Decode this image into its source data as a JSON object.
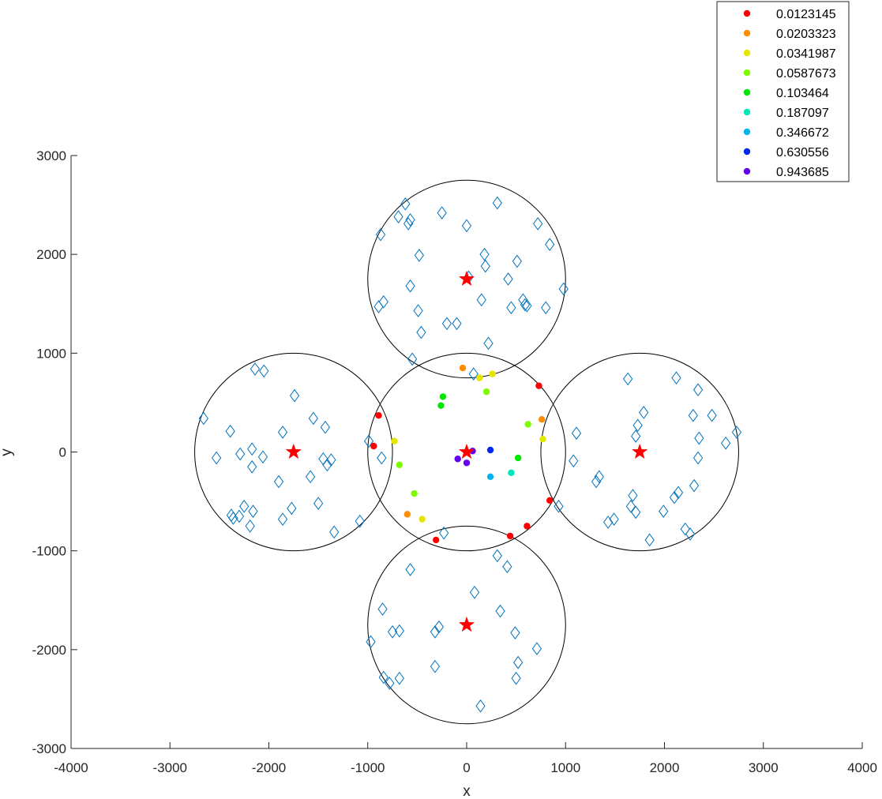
{
  "chart_data": {
    "type": "scatter",
    "title": "",
    "xlabel": "x",
    "ylabel": "y",
    "xlim": [
      -4000,
      4000
    ],
    "ylim": [
      -3000,
      3000
    ],
    "xticks": [
      -4000,
      -3000,
      -2000,
      -1000,
      0,
      1000,
      2000,
      3000,
      4000
    ],
    "yticks": [
      -3000,
      -2000,
      -1000,
      0,
      1000,
      2000,
      3000
    ],
    "grid": false,
    "legend_position": "top-right",
    "circles": {
      "radius": 1000,
      "color": "#000000",
      "centers": [
        [
          0,
          0
        ],
        [
          0,
          1750
        ],
        [
          0,
          -1750
        ],
        [
          -1750,
          0
        ],
        [
          1750,
          0
        ]
      ]
    },
    "centers_marker": {
      "marker": "star",
      "color": "#ff0000",
      "points": [
        [
          0,
          0
        ],
        [
          0,
          1750
        ],
        [
          0,
          -1750
        ],
        [
          -1750,
          0
        ],
        [
          1750,
          0
        ]
      ]
    },
    "diamonds": {
      "marker": "diamond",
      "color": "#0072bd",
      "points": [
        [
          -990,
          110
        ],
        [
          -860,
          -60
        ],
        [
          -1080,
          -700
        ],
        [
          -2660,
          340
        ],
        [
          -2530,
          -60
        ],
        [
          -2390,
          210
        ],
        [
          -2290,
          -20
        ],
        [
          -2170,
          30
        ],
        [
          -2170,
          -150
        ],
        [
          -2140,
          840
        ],
        [
          -2050,
          820
        ],
        [
          -2060,
          -50
        ],
        [
          -1860,
          200
        ],
        [
          -1740,
          570
        ],
        [
          -1550,
          340
        ],
        [
          -1580,
          -250
        ],
        [
          -1430,
          250
        ],
        [
          -1450,
          -70
        ],
        [
          -1410,
          -130
        ],
        [
          -1370,
          -80
        ],
        [
          -1500,
          -520
        ],
        [
          -1340,
          -810
        ],
        [
          -1770,
          -570
        ],
        [
          -1860,
          -680
        ],
        [
          -1900,
          -300
        ],
        [
          -2190,
          -750
        ],
        [
          -2160,
          -600
        ],
        [
          -2250,
          -550
        ],
        [
          -2300,
          -650
        ],
        [
          -2360,
          -670
        ],
        [
          -2380,
          -640
        ],
        [
          -620,
          2510
        ],
        [
          -590,
          2310
        ],
        [
          -570,
          2350
        ],
        [
          -690,
          2380
        ],
        [
          -870,
          2200
        ],
        [
          -250,
          2420
        ],
        [
          0,
          2290
        ],
        [
          310,
          2520
        ],
        [
          720,
          2310
        ],
        [
          840,
          2100
        ],
        [
          180,
          2000
        ],
        [
          190,
          1880
        ],
        [
          510,
          1930
        ],
        [
          -480,
          1990
        ],
        [
          -570,
          1680
        ],
        [
          20,
          1770
        ],
        [
          420,
          1750
        ],
        [
          980,
          1650
        ],
        [
          -840,
          1520
        ],
        [
          -890,
          1470
        ],
        [
          -490,
          1430
        ],
        [
          150,
          1540
        ],
        [
          570,
          1540
        ],
        [
          590,
          1490
        ],
        [
          610,
          1480
        ],
        [
          450,
          1460
        ],
        [
          800,
          1460
        ],
        [
          -460,
          1210
        ],
        [
          -200,
          1300
        ],
        [
          -100,
          1300
        ],
        [
          220,
          1100
        ],
        [
          -550,
          940
        ],
        [
          70,
          790
        ],
        [
          1110,
          190
        ],
        [
          1080,
          -90
        ],
        [
          930,
          -550
        ],
        [
          1310,
          -300
        ],
        [
          1340,
          -250
        ],
        [
          1430,
          -710
        ],
        [
          1490,
          -680
        ],
        [
          1630,
          740
        ],
        [
          1790,
          400
        ],
        [
          1730,
          270
        ],
        [
          1710,
          160
        ],
        [
          1660,
          -550
        ],
        [
          1680,
          -440
        ],
        [
          1710,
          -610
        ],
        [
          1850,
          -890
        ],
        [
          1990,
          -600
        ],
        [
          2100,
          -460
        ],
        [
          2140,
          -410
        ],
        [
          2210,
          -780
        ],
        [
          2260,
          -830
        ],
        [
          2290,
          370
        ],
        [
          2300,
          -340
        ],
        [
          2340,
          630
        ],
        [
          2120,
          750
        ],
        [
          2340,
          -60
        ],
        [
          2350,
          140
        ],
        [
          2480,
          370
        ],
        [
          2620,
          90
        ],
        [
          2730,
          200
        ],
        [
          -230,
          -820
        ],
        [
          -570,
          -1190
        ],
        [
          -850,
          -1590
        ],
        [
          -970,
          -1920
        ],
        [
          -840,
          -2280
        ],
        [
          -780,
          -2340
        ],
        [
          -750,
          -1820
        ],
        [
          -680,
          -1810
        ],
        [
          -680,
          -2290
        ],
        [
          -320,
          -1820
        ],
        [
          -280,
          -1770
        ],
        [
          -320,
          -2170
        ],
        [
          80,
          -1420
        ],
        [
          310,
          -1050
        ],
        [
          410,
          -1160
        ],
        [
          340,
          -1610
        ],
        [
          490,
          -1830
        ],
        [
          520,
          -2130
        ],
        [
          500,
          -2290
        ],
        [
          710,
          -1990
        ],
        [
          140,
          -2570
        ]
      ]
    },
    "legend_entries": [
      "0.0123145",
      "0.0203323",
      "0.0341987",
      "0.0587673",
      "0.103464",
      "0.187097",
      "0.346672",
      "0.630556",
      "0.943685"
    ],
    "series": [
      {
        "name": "0.0123145",
        "color": "#ff0000",
        "points": [
          [
            -890,
            370
          ],
          [
            -940,
            60
          ],
          [
            730,
            670
          ],
          [
            840,
            -490
          ],
          [
            610,
            -750
          ],
          [
            440,
            -850
          ],
          [
            -310,
            -890
          ]
        ]
      },
      {
        "name": "0.0203323",
        "color": "#ff8c00",
        "points": [
          [
            -40,
            850
          ],
          [
            760,
            330
          ],
          [
            -600,
            -630
          ]
        ]
      },
      {
        "name": "0.0341987",
        "color": "#e6e600",
        "points": [
          [
            130,
            750
          ],
          [
            260,
            790
          ],
          [
            770,
            130
          ],
          [
            -730,
            110
          ],
          [
            -450,
            -680
          ]
        ]
      },
      {
        "name": "0.0587673",
        "color": "#7cfc00",
        "points": [
          [
            200,
            610
          ],
          [
            620,
            280
          ],
          [
            -680,
            -130
          ],
          [
            -530,
            -420
          ]
        ]
      },
      {
        "name": "0.103464",
        "color": "#00e600",
        "points": [
          [
            -240,
            560
          ],
          [
            -260,
            470
          ],
          [
            520,
            -60
          ]
        ]
      },
      {
        "name": "0.187097",
        "color": "#00e6b8",
        "points": [
          [
            450,
            -210
          ]
        ]
      },
      {
        "name": "0.346672",
        "color": "#00b4f0",
        "points": [
          [
            240,
            -250
          ]
        ]
      },
      {
        "name": "0.630556",
        "color": "#0028f0",
        "points": [
          [
            240,
            20
          ]
        ]
      },
      {
        "name": "0.943685",
        "color": "#6400f0",
        "points": [
          [
            60,
            10
          ],
          [
            -90,
            -70
          ],
          [
            0,
            -110
          ]
        ]
      }
    ]
  }
}
